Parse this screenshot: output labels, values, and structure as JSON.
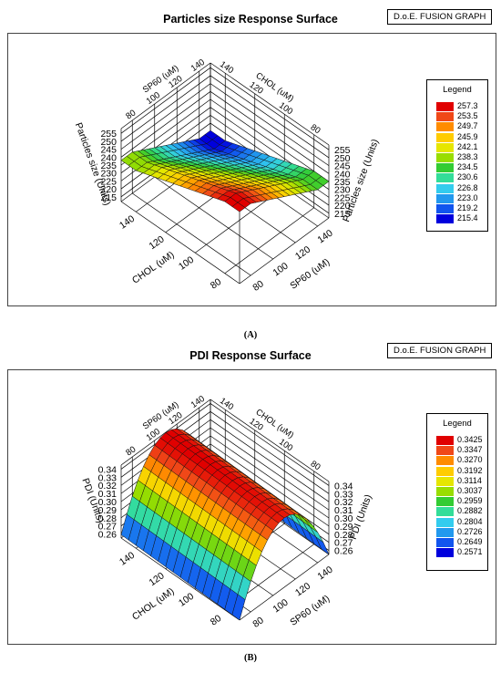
{
  "chart_data": [
    {
      "type": "surface",
      "title": "Particles size Response Surface",
      "badge": "D.o.E. FUSION GRAPH",
      "panel_label": "(A)",
      "x_factor": "CHOL (uM)",
      "y_factor": "SP60 (uM)",
      "response_label": "Particles size (Units)",
      "x_ticks": [
        "80",
        "100",
        "120",
        "140"
      ],
      "y_ticks": [
        "80",
        "100",
        "120",
        "140"
      ],
      "z_ticks": [
        "215",
        "220",
        "225",
        "230",
        "235",
        "240",
        "245",
        "250",
        "255"
      ],
      "xlim": [
        70,
        150
      ],
      "ylim": [
        70,
        150
      ],
      "zlim": [
        212,
        258
      ],
      "legend_title": "Legend",
      "legend_values": [
        "257.3",
        "253.5",
        "249.7",
        "245.9",
        "242.1",
        "238.3",
        "234.5",
        "230.6",
        "226.8",
        "223.0",
        "219.2",
        "215.4"
      ],
      "surface_corners": {
        "chol140_sp140": 215.4,
        "chol80_sp140": 235.0,
        "chol140_sp80": 238.0,
        "chol80_sp80": 257.3
      }
    },
    {
      "type": "surface",
      "title": "PDI Response Surface",
      "badge": "D.o.E. FUSION GRAPH",
      "panel_label": "(B)",
      "x_factor": "CHOL (uM)",
      "y_factor": "SP60 (uM)",
      "response_label": "PDI (Units)",
      "x_ticks": [
        "80",
        "100",
        "120",
        "140"
      ],
      "y_ticks": [
        "80",
        "100",
        "120",
        "140"
      ],
      "z_ticks": [
        "0.26",
        "0.27",
        "0.28",
        "0.29",
        "0.30",
        "0.31",
        "0.32",
        "0.33",
        "0.34"
      ],
      "xlim": [
        70,
        150
      ],
      "ylim": [
        70,
        150
      ],
      "zlim": [
        0.255,
        0.345
      ],
      "legend_title": "Legend",
      "legend_values": [
        "0.3425",
        "0.3347",
        "0.3270",
        "0.3192",
        "0.3114",
        "0.3037",
        "0.2959",
        "0.2882",
        "0.2804",
        "0.2726",
        "0.2649",
        "0.2571"
      ],
      "surface_peak": {
        "value": 0.3425,
        "at_sp60": 110,
        "edge_value": 0.2571
      }
    }
  ],
  "legend_colors": [
    "#e00000",
    "#f04818",
    "#ff8c00",
    "#ffcc00",
    "#e6e600",
    "#99dd00",
    "#33cc33",
    "#33dd99",
    "#33ccee",
    "#2299ee",
    "#1155ee",
    "#0000dd"
  ]
}
